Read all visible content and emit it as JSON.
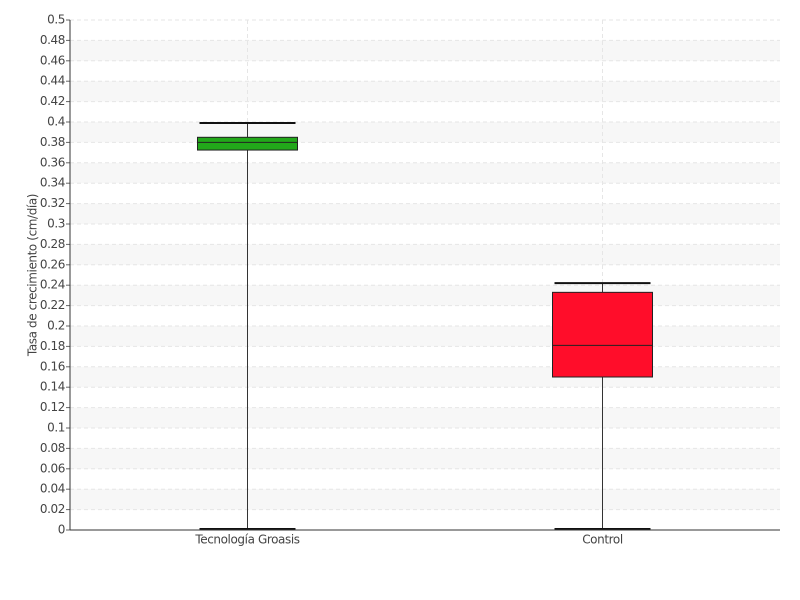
{
  "chart_data": {
    "type": "box",
    "y_label": "Tasa de crecimiento (cm/día)",
    "categories": [
      "Tecnología Groasis",
      "Control"
    ],
    "boxes": [
      {
        "min": 0,
        "q1": 0.3725,
        "median": 0.38,
        "q3": 0.385,
        "max": 0.399,
        "color": "#22a81a"
      },
      {
        "min": 0,
        "q1": 0.15,
        "median": 0.181,
        "q3": 0.233,
        "max": 0.242,
        "color": "#ff0d2a"
      }
    ],
    "ylim": [
      0,
      0.5
    ],
    "yticks": [
      0,
      0.02,
      0.04,
      0.06,
      0.08,
      0.1,
      0.12,
      0.14,
      0.16,
      0.18,
      0.2,
      0.22,
      0.24,
      0.26,
      0.28,
      0.3,
      0.32,
      0.34,
      0.36,
      0.38,
      0.4,
      0.42,
      0.44,
      0.46,
      0.48,
      0.5
    ],
    "grid": true
  }
}
